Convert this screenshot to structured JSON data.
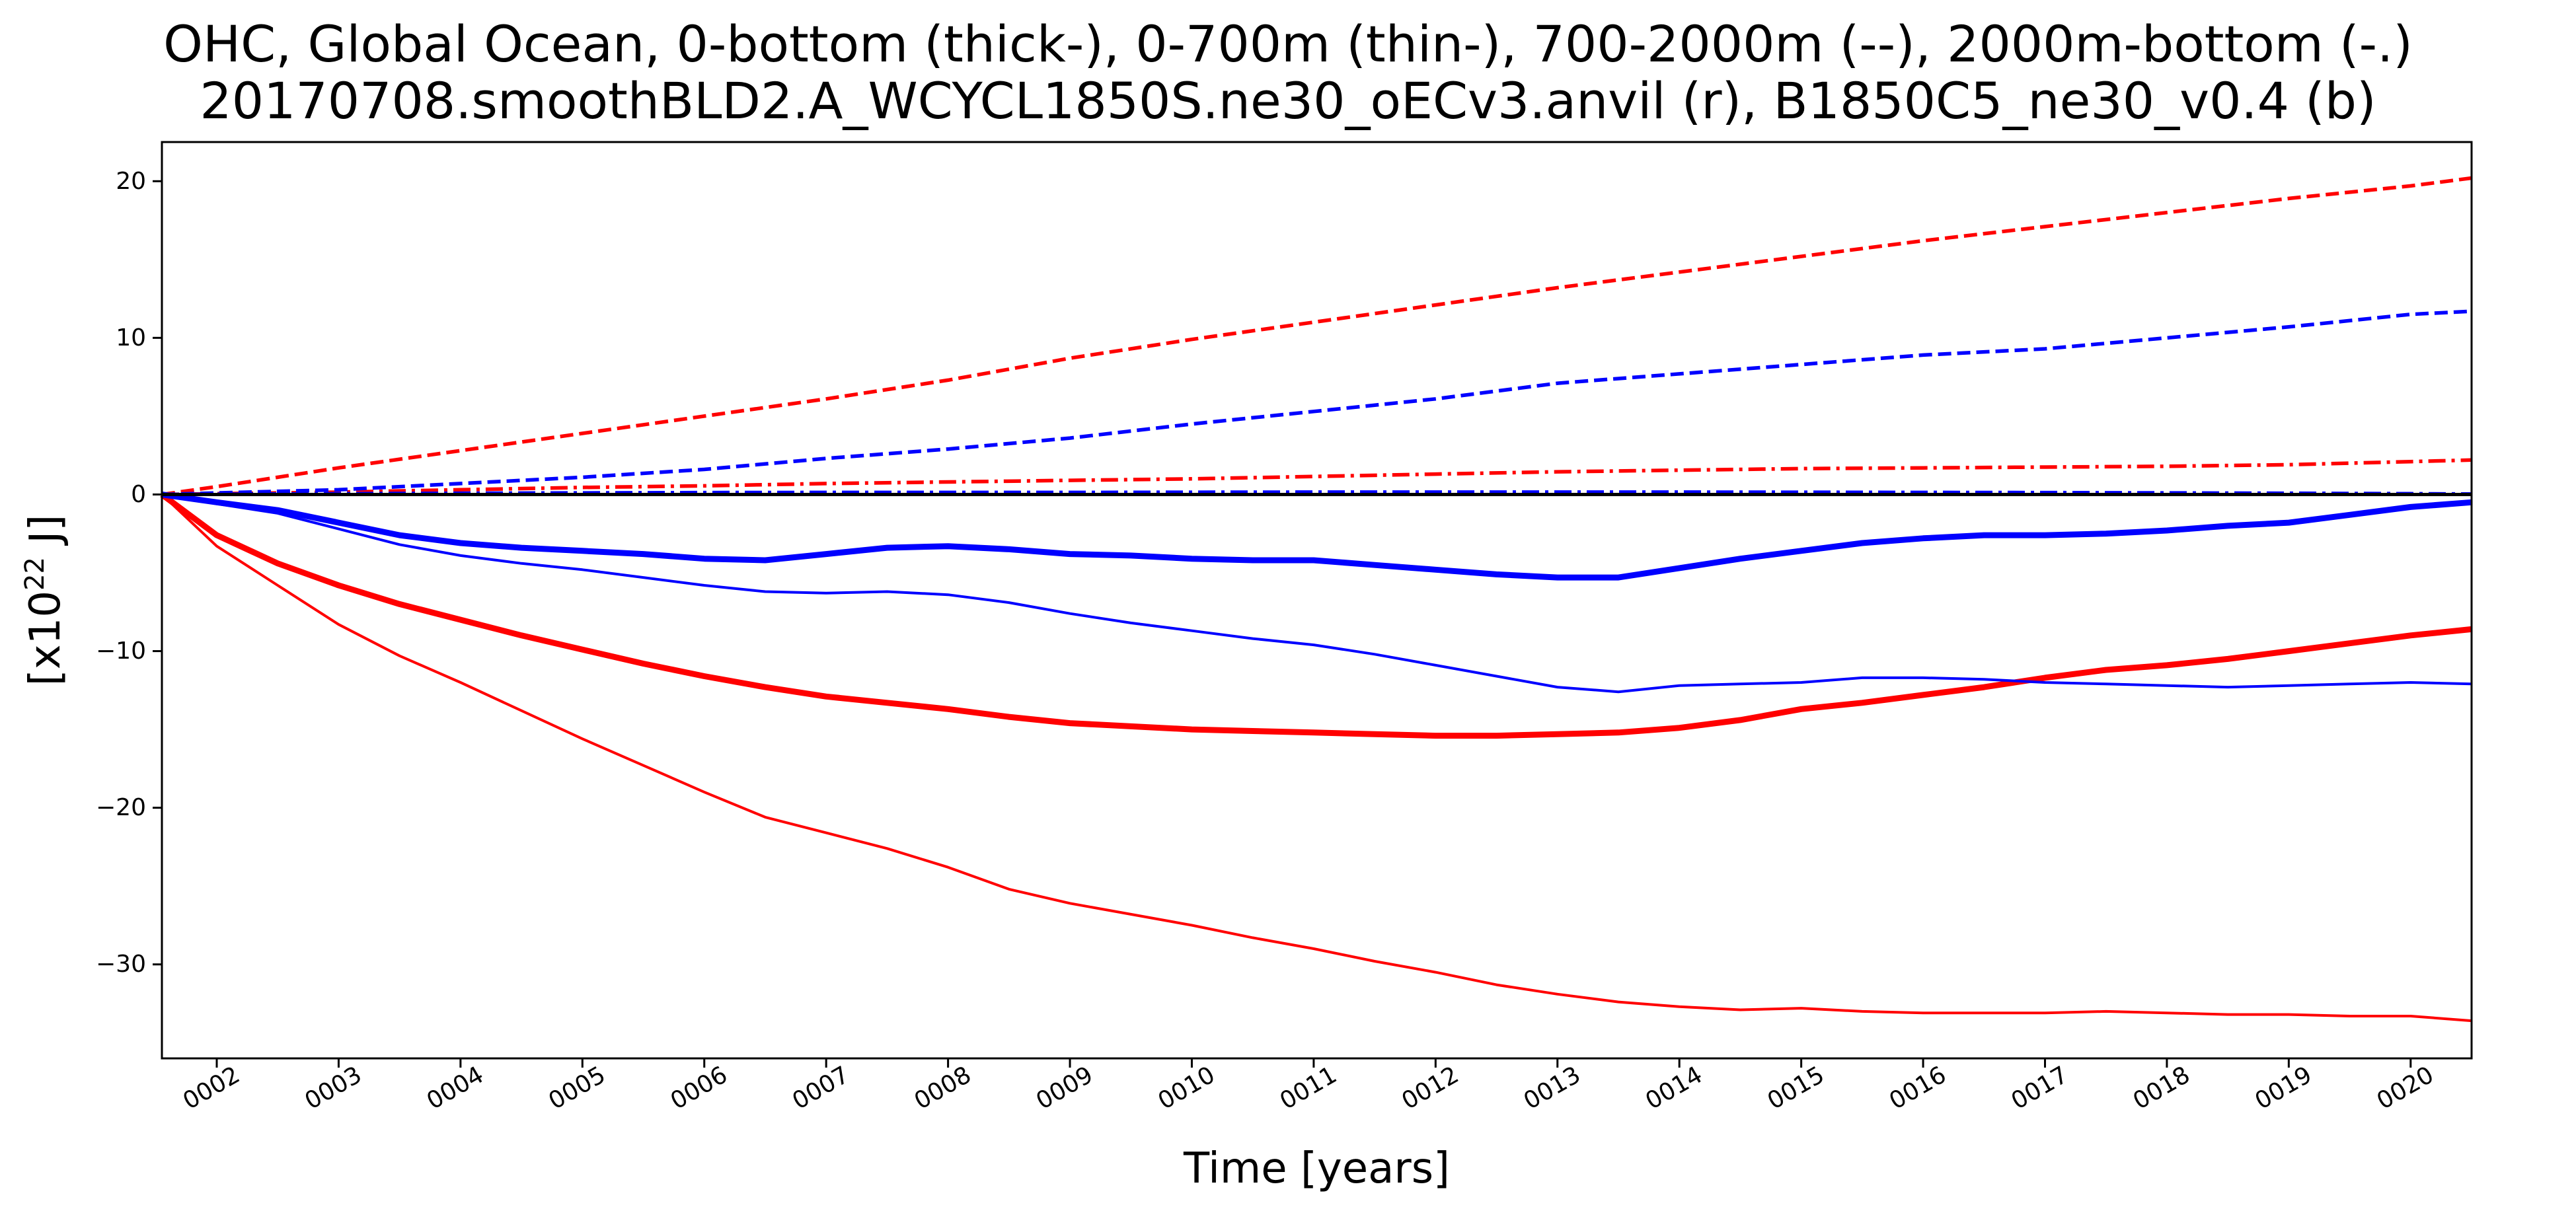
{
  "chart_data": {
    "type": "line",
    "title": [
      "OHC, Global Ocean, 0-bottom (thick-), 0-700m (thin-), 700-2000m (--), 2000m-bottom (-.)",
      "20170708.smoothBLD2.A_WCYCL1850S.ne30_oECv3.anvil (r), B1850C5_ne30_v0.4 (b)"
    ],
    "xlabel": "Time [years]",
    "ylabel": {
      "prefix": "[x10",
      "sup": "22",
      "suffix": " J]"
    },
    "xlim": [
      1.55,
      20.5
    ],
    "ylim": [
      -36,
      22.5
    ],
    "x_ticks": [
      2,
      3,
      4,
      5,
      6,
      7,
      8,
      9,
      10,
      11,
      12,
      13,
      14,
      15,
      16,
      17,
      18,
      19,
      20
    ],
    "x_tick_labels": [
      "0002",
      "0003",
      "0004",
      "0005",
      "0006",
      "0007",
      "0008",
      "0009",
      "0010",
      "0011",
      "0012",
      "0013",
      "0014",
      "0015",
      "0016",
      "0017",
      "0018",
      "0019",
      "0020"
    ],
    "y_ticks": [
      20,
      10,
      0,
      -10,
      -20,
      -30
    ],
    "y_tick_labels": [
      "20",
      "10",
      "0",
      "−10",
      "−20",
      "−30"
    ],
    "grid": false,
    "zero_line": {
      "y": 0,
      "color": "#000000"
    },
    "series": [
      {
        "color": "#ff0000",
        "style": "thick",
        "x": [
          1.55,
          2,
          2.5,
          3,
          3.5,
          4,
          4.5,
          5,
          5.5,
          6,
          6.5,
          7,
          7.5,
          8,
          8.5,
          9,
          9.5,
          10,
          10.5,
          11,
          11.5,
          12,
          12.5,
          13,
          13.5,
          14,
          14.5,
          15,
          15.5,
          16,
          16.5,
          17,
          17.5,
          18,
          18.5,
          19,
          19.5,
          20,
          20.5
        ],
        "y": [
          0,
          -2.6,
          -4.4,
          -5.8,
          -7.0,
          -8.0,
          -9.0,
          -9.9,
          -10.8,
          -11.6,
          -12.3,
          -12.9,
          -13.3,
          -13.7,
          -14.2,
          -14.6,
          -14.8,
          -15.0,
          -15.1,
          -15.2,
          -15.3,
          -15.4,
          -15.4,
          -15.3,
          -15.2,
          -14.9,
          -14.4,
          -13.7,
          -13.3,
          -12.8,
          -12.3,
          -11.7,
          -11.2,
          -10.9,
          -10.5,
          -10.0,
          -9.5,
          -9.0,
          -8.6
        ]
      },
      {
        "color": "#ff0000",
        "style": "thin",
        "x": [
          1.55,
          2,
          2.5,
          3,
          3.5,
          4,
          4.5,
          5,
          5.5,
          6,
          6.5,
          7,
          7.5,
          8,
          8.5,
          9,
          9.5,
          10,
          10.5,
          11,
          11.5,
          12,
          12.5,
          13,
          13.5,
          14,
          14.5,
          15,
          15.5,
          16,
          16.5,
          17,
          17.5,
          18,
          18.5,
          19,
          19.5,
          20,
          20.5
        ],
        "y": [
          0,
          -3.3,
          -5.8,
          -8.3,
          -10.3,
          -12.0,
          -13.8,
          -15.6,
          -17.3,
          -19.0,
          -20.6,
          -21.6,
          -22.6,
          -23.8,
          -25.2,
          -26.1,
          -26.8,
          -27.5,
          -28.3,
          -29.0,
          -29.8,
          -30.5,
          -31.3,
          -31.9,
          -32.4,
          -32.7,
          -32.9,
          -32.8,
          -33.0,
          -33.1,
          -33.1,
          -33.1,
          -33.0,
          -33.1,
          -33.2,
          -33.2,
          -33.3,
          -33.3,
          -33.6
        ]
      },
      {
        "color": "#ff0000",
        "style": "dashed",
        "x": [
          1.55,
          2,
          3,
          4,
          5,
          6,
          7,
          8,
          9,
          10,
          11,
          12,
          13,
          14,
          15,
          16,
          17,
          18,
          19,
          20,
          20.5
        ],
        "y": [
          0,
          0.5,
          1.7,
          2.8,
          3.9,
          5.0,
          6.1,
          7.3,
          8.7,
          9.9,
          11.0,
          12.1,
          13.2,
          14.2,
          15.2,
          16.2,
          17.1,
          18.0,
          18.9,
          19.7,
          20.2
        ]
      },
      {
        "color": "#ff0000",
        "style": "dashdot",
        "x": [
          1.55,
          2,
          3,
          4,
          5,
          6,
          7,
          8,
          9,
          10,
          11,
          12,
          13,
          14,
          15,
          16,
          17,
          18,
          19,
          20,
          20.5
        ],
        "y": [
          0,
          0.05,
          0.15,
          0.3,
          0.45,
          0.55,
          0.7,
          0.8,
          0.9,
          1.0,
          1.15,
          1.3,
          1.45,
          1.55,
          1.65,
          1.7,
          1.75,
          1.8,
          1.9,
          2.1,
          2.2
        ]
      },
      {
        "color": "#0000ff",
        "style": "thick",
        "x": [
          1.55,
          2,
          2.5,
          3,
          3.5,
          4,
          4.5,
          5,
          5.5,
          6,
          6.5,
          7,
          7.5,
          8,
          8.5,
          9,
          9.5,
          10,
          10.5,
          11,
          11.5,
          12,
          12.5,
          13,
          13.5,
          14,
          14.5,
          15,
          15.5,
          16,
          16.5,
          17,
          17.5,
          18,
          18.5,
          19,
          19.5,
          20,
          20.5
        ],
        "y": [
          0,
          -0.5,
          -1.0,
          -1.8,
          -2.6,
          -3.1,
          -3.4,
          -3.6,
          -3.8,
          -4.1,
          -4.2,
          -3.8,
          -3.4,
          -3.3,
          -3.5,
          -3.8,
          -3.9,
          -4.1,
          -4.2,
          -4.2,
          -4.5,
          -4.8,
          -5.1,
          -5.3,
          -5.3,
          -4.7,
          -4.1,
          -3.6,
          -3.1,
          -2.8,
          -2.6,
          -2.6,
          -2.5,
          -2.3,
          -2.0,
          -1.8,
          -1.3,
          -0.8,
          -0.5
        ]
      },
      {
        "color": "#0000ff",
        "style": "thin",
        "x": [
          1.55,
          2,
          2.5,
          3,
          3.5,
          4,
          4.5,
          5,
          5.5,
          6,
          6.5,
          7,
          7.5,
          8,
          8.5,
          9,
          9.5,
          10,
          10.5,
          11,
          11.5,
          12,
          12.5,
          13,
          13.5,
          14,
          14.5,
          15,
          15.5,
          16,
          16.5,
          17,
          17.5,
          18,
          18.5,
          19,
          19.5,
          20,
          20.5
        ],
        "y": [
          0,
          -0.6,
          -1.2,
          -2.2,
          -3.2,
          -3.9,
          -4.4,
          -4.8,
          -5.3,
          -5.8,
          -6.2,
          -6.3,
          -6.2,
          -6.4,
          -6.9,
          -7.6,
          -8.2,
          -8.7,
          -9.2,
          -9.6,
          -10.2,
          -10.9,
          -11.6,
          -12.3,
          -12.6,
          -12.2,
          -12.1,
          -12.0,
          -11.7,
          -11.7,
          -11.8,
          -12.0,
          -12.1,
          -12.2,
          -12.3,
          -12.2,
          -12.1,
          -12.0,
          -12.1
        ]
      },
      {
        "color": "#0000ff",
        "style": "dashed",
        "x": [
          1.55,
          2,
          3,
          4,
          5,
          6,
          7,
          8,
          9,
          10,
          11,
          12,
          13,
          14,
          15,
          16,
          17,
          18,
          19,
          20,
          20.5
        ],
        "y": [
          0,
          0.1,
          0.3,
          0.7,
          1.1,
          1.6,
          2.3,
          2.9,
          3.6,
          4.5,
          5.3,
          6.1,
          7.1,
          7.7,
          8.3,
          8.9,
          9.3,
          10.0,
          10.7,
          11.5,
          11.7
        ]
      },
      {
        "color": "#0000ff",
        "style": "dashdot",
        "x": [
          1.55,
          2,
          3,
          4,
          5,
          6,
          7,
          8,
          9,
          10,
          11,
          12,
          13,
          14,
          15,
          16,
          17,
          18,
          19,
          20,
          20.5
        ],
        "y": [
          0,
          0.02,
          0.05,
          0.08,
          0.1,
          0.12,
          0.13,
          0.13,
          0.13,
          0.14,
          0.15,
          0.15,
          0.15,
          0.15,
          0.14,
          0.13,
          0.12,
          0.1,
          0.08,
          0.05,
          0.03
        ]
      }
    ]
  }
}
